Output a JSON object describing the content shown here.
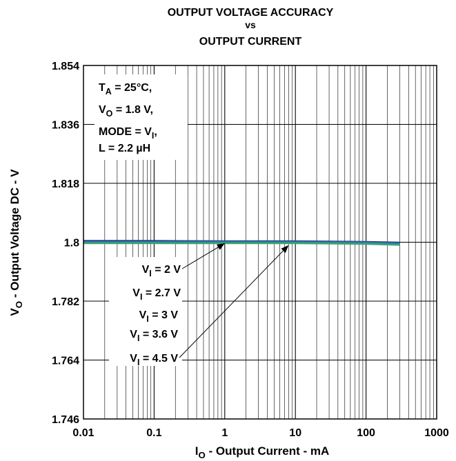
{
  "chart_data": {
    "type": "line",
    "title": [
      "OUTPUT VOLTAGE ACCURACY",
      "vs",
      "OUTPUT CURRENT"
    ],
    "xlabel": {
      "prefix": "I",
      "sub": "O",
      "rest": " - Output Current - mA"
    },
    "ylabel": {
      "prefix": "V",
      "sub": "O",
      "rest": " - Output Voltage DC - V"
    },
    "x_scale": "log",
    "xlim": [
      0.01,
      1000
    ],
    "ylim": [
      1.746,
      1.854
    ],
    "x_ticks": [
      0.01,
      0.1,
      1,
      10,
      100,
      1000
    ],
    "x_tick_labels": [
      "0.01",
      "0.1",
      "1",
      "10",
      "100",
      "1000"
    ],
    "y_ticks": [
      1.746,
      1.764,
      1.782,
      1.8,
      1.818,
      1.836,
      1.854
    ],
    "y_tick_labels": [
      "1.746",
      "1.764",
      "1.782",
      "1.8",
      "1.818",
      "1.836",
      "1.854"
    ],
    "grid": true,
    "conditions": [
      {
        "prefix": "T",
        "sub": "A",
        "rest": " = 25°C,"
      },
      {
        "prefix": "V",
        "sub": "O",
        "rest": " = 1.8 V,"
      },
      {
        "prefix": "MODE = V",
        "sub": "I",
        "rest": ","
      },
      {
        "prefix": "L = 2.2 ",
        "sub": "",
        "rest": "µH"
      }
    ],
    "series": [
      {
        "name": "VI = 2 V",
        "color": "#2a2f8f",
        "x": [
          0.01,
          0.1,
          1,
          10,
          100,
          300
        ],
        "y": [
          1.8004,
          1.8004,
          1.8003,
          1.8003,
          1.8001,
          1.7999
        ]
      },
      {
        "name": "VI = 2.7 V",
        "color": "#33449a",
        "x": [
          0.01,
          0.1,
          1,
          10,
          100,
          300
        ],
        "y": [
          1.8002,
          1.8002,
          1.8002,
          1.8002,
          1.8,
          1.7997
        ]
      },
      {
        "name": "VI = 3 V",
        "color": "#2b6f9f",
        "x": [
          0.01,
          0.1,
          1,
          10,
          100,
          300
        ],
        "y": [
          1.8001,
          1.8001,
          1.8001,
          1.8001,
          1.7999,
          1.7996
        ]
      },
      {
        "name": "VI = 3.6 V",
        "color": "#2a8a8a",
        "x": [
          0.01,
          0.1,
          1,
          10,
          100,
          300
        ],
        "y": [
          1.7999,
          1.7999,
          1.7999,
          1.7999,
          1.7997,
          1.7994
        ]
      },
      {
        "name": "VI = 4.5 V",
        "color": "#3aa17a",
        "x": [
          0.01,
          0.1,
          1,
          10,
          100,
          300
        ],
        "y": [
          1.7997,
          1.7997,
          1.7997,
          1.7997,
          1.7995,
          1.7992
        ]
      }
    ],
    "annotations": [
      {
        "prefix": "V",
        "sub": "I",
        "rest": " = 2 V",
        "arrow_to": [
          1,
          1.8003
        ]
      },
      {
        "prefix": "V",
        "sub": "I",
        "rest": " = 2.7 V",
        "arrow_to": null
      },
      {
        "prefix": "V",
        "sub": "I",
        "rest": " = 3 V",
        "arrow_to": null
      },
      {
        "prefix": "V",
        "sub": "I",
        "rest": " = 3.6 V",
        "arrow_to": null
      },
      {
        "prefix": "V",
        "sub": "I",
        "rest": " = 4.5 V",
        "arrow_to": [
          8,
          1.7997
        ]
      }
    ]
  }
}
